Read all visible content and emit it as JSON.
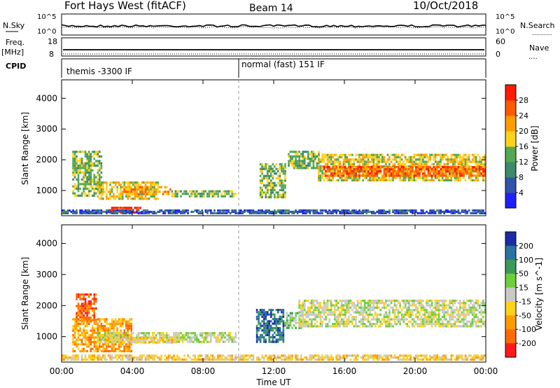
{
  "header": {
    "station": "Fort Hays West (fitACF)",
    "beam": "Beam 14",
    "date": "10/Oct/2018"
  },
  "status": {
    "nsky_label": "N.Sky",
    "nsearch_label": "N.Search",
    "nsearch_marker": "..........",
    "freq_label": "Freq.",
    "freq_unit": "[MHz]",
    "nave_label": "Nave",
    "nave_marker": "....",
    "cpid_label": "CPID",
    "noise_left_ticks": [
      "10^5",
      "10^0"
    ],
    "noise_right_ticks": [
      "10^5",
      "10^0"
    ],
    "freq_left_ticks": [
      "18",
      "8"
    ],
    "freq_right_ticks": [
      "60",
      "0"
    ],
    "cpid_segments": [
      {
        "label": "themis -3300 IF",
        "start": 0.0
      },
      {
        "label": "normal (fast) 151 IF",
        "start": 9.9
      }
    ]
  },
  "colors": {
    "power": [
      "#1f1fff",
      "#2f55a8",
      "#3d8a6a",
      "#53a850",
      "#ffd21a",
      "#ff9d00",
      "#ff5a00",
      "#ff1a00"
    ],
    "velocity": [
      "#1b2ca6",
      "#2c72a0",
      "#3a9a5a",
      "#6fcf3a",
      "#c9c9c9",
      "#ffd21a",
      "#ff9d00",
      "#ff6a00",
      "#ff1a1a"
    ],
    "panel_border": "#000000"
  },
  "chart_data": [
    {
      "type": "heatmap",
      "name": "power",
      "ylabel": "Slant Range [km]",
      "yticks": [
        "4000",
        "3000",
        "2000",
        "1000"
      ],
      "ytick_values": [
        4000,
        3000,
        2000,
        1000
      ],
      "ylim": [
        180,
        4600
      ],
      "xlim": [
        0,
        24
      ],
      "colorbar_label": "Power [dB]",
      "colorbar_ticks": [
        "28",
        "24",
        "20",
        "16",
        "12",
        "8",
        "4"
      ],
      "colorbar_range": [
        0,
        32
      ],
      "bands": [
        {
          "t0": 0.6,
          "t1": 2.3,
          "r0": 800,
          "r1": 2300,
          "level": 3
        },
        {
          "t0": 2.0,
          "t1": 5.5,
          "r0": 700,
          "r1": 1300,
          "level": 4
        },
        {
          "t0": 3.5,
          "t1": 6.2,
          "r0": 850,
          "r1": 1150,
          "level": 5
        },
        {
          "t0": 6.2,
          "t1": 9.9,
          "r0": 780,
          "r1": 1020,
          "level": 3
        },
        {
          "t0": 2.7,
          "t1": 4.5,
          "r0": 250,
          "r1": 480,
          "level": 7
        },
        {
          "t0": 0.0,
          "t1": 24.0,
          "r0": 230,
          "r1": 360,
          "level": 1
        },
        {
          "t0": 11.2,
          "t1": 12.7,
          "r0": 750,
          "r1": 1900,
          "level": 3
        },
        {
          "t0": 12.8,
          "t1": 14.6,
          "r0": 1700,
          "r1": 2300,
          "level": 3
        },
        {
          "t0": 14.5,
          "t1": 24.0,
          "r0": 1300,
          "r1": 2200,
          "level": 4
        },
        {
          "t0": 14.8,
          "t1": 24.0,
          "r0": 1450,
          "r1": 1800,
          "level": 6
        }
      ]
    },
    {
      "type": "heatmap",
      "name": "velocity",
      "ylabel": "Slant Range [km]",
      "yticks": [
        "4000",
        "3000",
        "2000",
        "1000"
      ],
      "ytick_values": [
        4000,
        3000,
        2000,
        1000
      ],
      "ylim": [
        180,
        4600
      ],
      "xlim": [
        0,
        24
      ],
      "xlabel": "Time UT",
      "xticks": [
        "00:00",
        "04:00",
        "08:00",
        "12:00",
        "16:00",
        "20:00",
        "00:00"
      ],
      "xtick_values": [
        0,
        4,
        8,
        12,
        16,
        20,
        24
      ],
      "colorbar_label": "Velocity [m s^-1]",
      "colorbar_ticks": [
        "200",
        "100",
        "50",
        "15",
        "-15",
        "-50",
        "-100",
        "-200"
      ],
      "bands": [
        {
          "t0": 0.8,
          "t1": 2.0,
          "r0": 1500,
          "r1": 2400,
          "level": 7
        },
        {
          "t0": 0.6,
          "t1": 4.0,
          "r0": 500,
          "r1": 1600,
          "level": 6
        },
        {
          "t0": 2.0,
          "t1": 9.9,
          "r0": 800,
          "r1": 1150,
          "level": 4
        },
        {
          "t0": 2.5,
          "t1": 6.5,
          "r0": 780,
          "r1": 1000,
          "level": 5
        },
        {
          "t0": 0.0,
          "t1": 24.0,
          "r0": 230,
          "r1": 420,
          "level": 5
        },
        {
          "t0": 11.0,
          "t1": 12.6,
          "r0": 800,
          "r1": 1900,
          "level": 1
        },
        {
          "t0": 12.6,
          "t1": 13.6,
          "r0": 1250,
          "r1": 1800,
          "level": 3
        },
        {
          "t0": 13.4,
          "t1": 24.0,
          "r0": 1300,
          "r1": 2200,
          "level": 4
        }
      ]
    }
  ]
}
